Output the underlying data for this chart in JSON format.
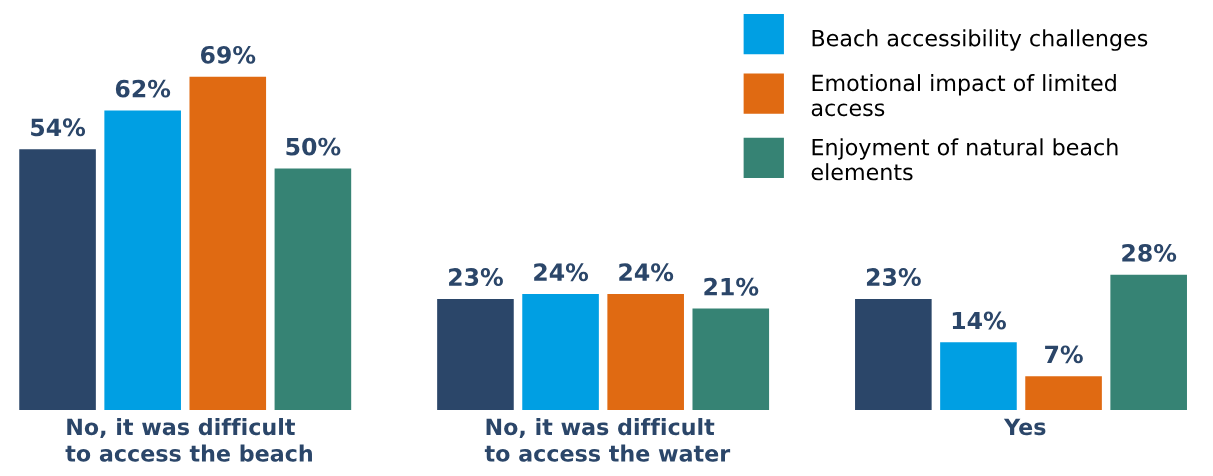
{
  "chart_data": {
    "type": "bar",
    "categories": [
      "No, it was difficult\nto access the beach",
      "No, it was difficult\nto access the water",
      "Yes"
    ],
    "series": [
      {
        "color": "#2b4669",
        "values": [
          54,
          23,
          23
        ],
        "value_labels": [
          "54%",
          "23%",
          "23%"
        ]
      },
      {
        "name": "Beach accessibility challenges",
        "color": "#009fe3",
        "values": [
          62,
          24,
          14
        ],
        "value_labels": [
          "62%",
          "24%",
          "14%"
        ]
      },
      {
        "name": "Emotional impact of limited\naccess",
        "color": "#e06a12",
        "values": [
          69,
          24,
          7
        ],
        "value_labels": [
          "69%",
          "24%",
          "7%"
        ]
      },
      {
        "name": "Enjoyment of natural beach\nelements",
        "color": "#368374",
        "values": [
          50,
          21,
          28
        ],
        "value_labels": [
          "50%",
          "21%",
          "28%"
        ]
      }
    ],
    "legend": "top right",
    "tick_labels": false
  }
}
